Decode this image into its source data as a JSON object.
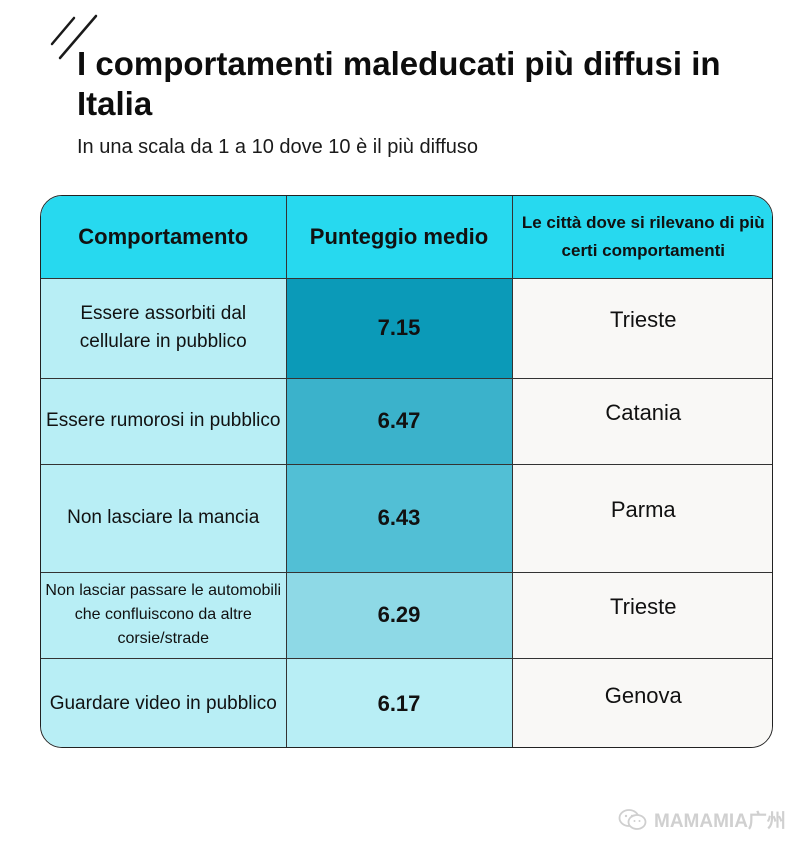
{
  "header": {
    "title": "I comportamenti maleducati più diffusi in Italia",
    "subtitle": "In una scala da 1 a 10 dove 10 è il più diffuso"
  },
  "chart_data": {
    "type": "table",
    "columns": [
      "Comportamento",
      "Punteggio medio",
      "Le città dove si rilevano di più certi comportamenti"
    ],
    "rows": [
      {
        "behavior": "Essere assorbiti dal cellulare in pubblico",
        "score": "7.15",
        "city": "Trieste"
      },
      {
        "behavior": "Essere rumorosi in pubblico",
        "score": "6.47",
        "city": "Catania"
      },
      {
        "behavior": "Non lasciare la mancia",
        "score": "6.43",
        "city": "Parma"
      },
      {
        "behavior": "Non lasciar passare le automobili che confluiscono da altre corsie/strade",
        "score": "6.29",
        "city": "Trieste"
      },
      {
        "behavior": "Guardare video in pubblico",
        "score": "6.17",
        "city": "Genova"
      }
    ],
    "score_colors": [
      "#0b9ab8",
      "#3bb2cb",
      "#52bfd5",
      "#8ed9e6",
      "#b8eef5"
    ]
  },
  "watermark": {
    "text": "MAMAMIA广州",
    "icon": "wechat-icon"
  }
}
